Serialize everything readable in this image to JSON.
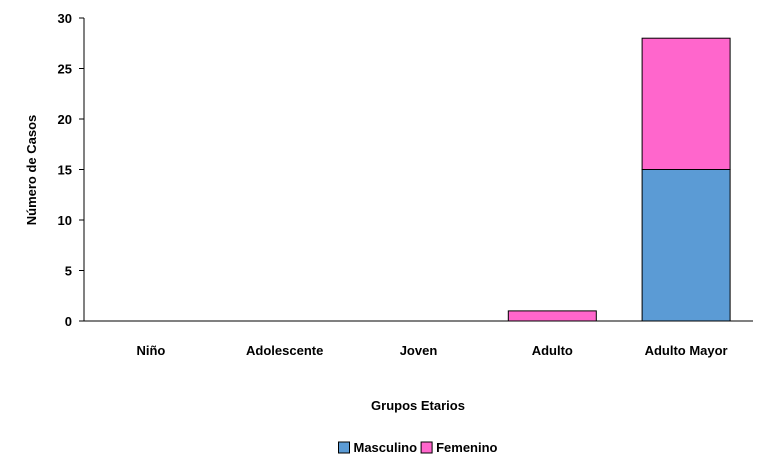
{
  "chart_data": {
    "type": "bar",
    "stacked": true,
    "categories": [
      "Niño",
      "Adolescente",
      "Joven",
      "Adulto",
      "Adulto Mayor"
    ],
    "series": [
      {
        "name": "Masculino",
        "values": [
          0,
          0,
          0,
          0,
          15
        ],
        "color": "#5b9bd5"
      },
      {
        "name": "Femenino",
        "values": [
          0,
          0,
          0,
          1,
          13
        ],
        "color": "#ff66cc"
      }
    ],
    "xlabel": "Grupos Etarios",
    "ylabel": "Número de Casos",
    "ylim": [
      0,
      30
    ],
    "yticks": [
      0,
      5,
      10,
      15,
      20,
      25,
      30
    ],
    "grid": false,
    "legend_position": "bottom"
  }
}
